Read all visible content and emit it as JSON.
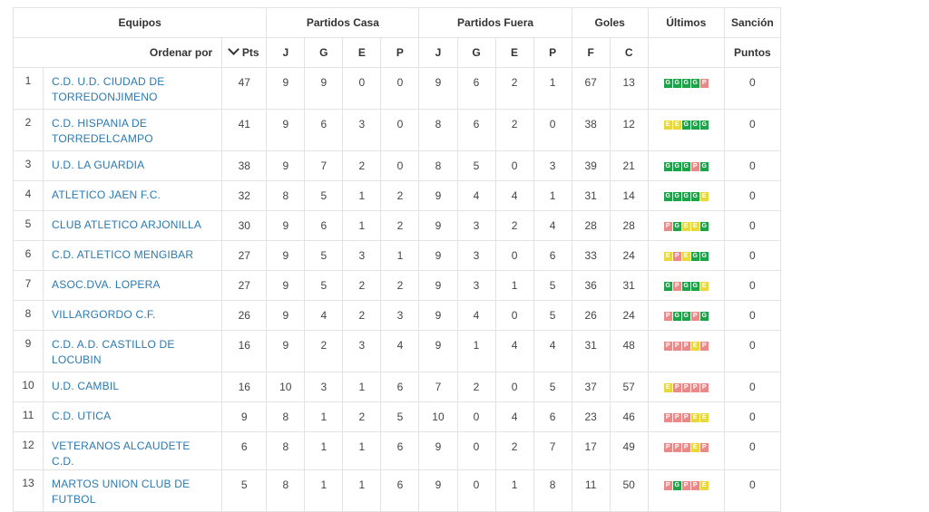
{
  "header": {
    "equipos": "Equipos",
    "casa": "Partidos Casa",
    "fuera": "Partidos Fuera",
    "goles": "Goles",
    "ultimos": "Últimos",
    "sancion": "Sanción",
    "ordenar": "Ordenar por",
    "pts": "Pts",
    "j1": "J",
    "g1": "G",
    "e1": "E",
    "p1": "P",
    "j2": "J",
    "g2": "G",
    "e2": "E",
    "p2": "P",
    "f": "F",
    "c": "C",
    "puntos": "Puntos"
  },
  "form_colors": {
    "G": "#1fa34a",
    "E": "#e8d83c",
    "P": "#e88a8a"
  },
  "rows": [
    {
      "pos": "1",
      "team": "C.D. U.D. CIUDAD DE TORREDONJIMENO",
      "pts": "47",
      "hj": "9",
      "hg": "9",
      "he": "0",
      "hp": "0",
      "aj": "9",
      "ag": "6",
      "ae": "2",
      "ap": "1",
      "f": "67",
      "c": "13",
      "form": [
        "G",
        "G",
        "G",
        "G",
        "P"
      ],
      "sancion": "0"
    },
    {
      "pos": "2",
      "team": "C.D. HISPANIA DE TORREDELCAMPO",
      "pts": "41",
      "hj": "9",
      "hg": "6",
      "he": "3",
      "hp": "0",
      "aj": "8",
      "ag": "6",
      "ae": "2",
      "ap": "0",
      "f": "38",
      "c": "12",
      "form": [
        "E",
        "E",
        "G",
        "G",
        "G"
      ],
      "sancion": "0"
    },
    {
      "pos": "3",
      "team": "U.D. LA GUARDIA",
      "pts": "38",
      "hj": "9",
      "hg": "7",
      "he": "2",
      "hp": "0",
      "aj": "8",
      "ag": "5",
      "ae": "0",
      "ap": "3",
      "f": "39",
      "c": "21",
      "form": [
        "G",
        "G",
        "G",
        "P",
        "G"
      ],
      "sancion": "0"
    },
    {
      "pos": "4",
      "team": "ATLETICO JAEN F.C.",
      "pts": "32",
      "hj": "8",
      "hg": "5",
      "he": "1",
      "hp": "2",
      "aj": "9",
      "ag": "4",
      "ae": "4",
      "ap": "1",
      "f": "31",
      "c": "14",
      "form": [
        "G",
        "G",
        "G",
        "G",
        "E"
      ],
      "sancion": "0"
    },
    {
      "pos": "5",
      "team": "CLUB ATLETICO ARJONILLA",
      "pts": "30",
      "hj": "9",
      "hg": "6",
      "he": "1",
      "hp": "2",
      "aj": "9",
      "ag": "3",
      "ae": "2",
      "ap": "4",
      "f": "28",
      "c": "28",
      "form": [
        "P",
        "G",
        "E",
        "E",
        "G"
      ],
      "sancion": "0"
    },
    {
      "pos": "6",
      "team": "C.D. ATLETICO MENGIBAR",
      "pts": "27",
      "hj": "9",
      "hg": "5",
      "he": "3",
      "hp": "1",
      "aj": "9",
      "ag": "3",
      "ae": "0",
      "ap": "6",
      "f": "33",
      "c": "24",
      "form": [
        "E",
        "P",
        "E",
        "G",
        "G"
      ],
      "sancion": "0"
    },
    {
      "pos": "7",
      "team": "ASOC.DVA. LOPERA",
      "pts": "27",
      "hj": "9",
      "hg": "5",
      "he": "2",
      "hp": "2",
      "aj": "9",
      "ag": "3",
      "ae": "1",
      "ap": "5",
      "f": "36",
      "c": "31",
      "form": [
        "G",
        "P",
        "G",
        "G",
        "E"
      ],
      "sancion": "0"
    },
    {
      "pos": "8",
      "team": "VILLARGORDO C.F.",
      "pts": "26",
      "hj": "9",
      "hg": "4",
      "he": "2",
      "hp": "3",
      "aj": "9",
      "ag": "4",
      "ae": "0",
      "ap": "5",
      "f": "26",
      "c": "24",
      "form": [
        "P",
        "G",
        "G",
        "P",
        "G"
      ],
      "sancion": "0"
    },
    {
      "pos": "9",
      "team": "C.D. A.D. CASTILLO DE LOCUBIN",
      "pts": "16",
      "hj": "9",
      "hg": "2",
      "he": "3",
      "hp": "4",
      "aj": "9",
      "ag": "1",
      "ae": "4",
      "ap": "4",
      "f": "31",
      "c": "48",
      "form": [
        "P",
        "P",
        "P",
        "E",
        "P"
      ],
      "sancion": "0"
    },
    {
      "pos": "10",
      "team": "U.D. CAMBIL",
      "pts": "16",
      "hj": "10",
      "hg": "3",
      "he": "1",
      "hp": "6",
      "aj": "7",
      "ag": "2",
      "ae": "0",
      "ap": "5",
      "f": "37",
      "c": "57",
      "form": [
        "E",
        "P",
        "P",
        "P",
        "P"
      ],
      "sancion": "0"
    },
    {
      "pos": "11",
      "team": "C.D. UTICA",
      "pts": "9",
      "hj": "8",
      "hg": "1",
      "he": "2",
      "hp": "5",
      "aj": "10",
      "ag": "0",
      "ae": "4",
      "ap": "6",
      "f": "23",
      "c": "46",
      "form": [
        "P",
        "P",
        "P",
        "E",
        "E"
      ],
      "sancion": "0"
    },
    {
      "pos": "12",
      "team": "VETERANOS ALCAUDETE C.D.",
      "pts": "6",
      "hj": "8",
      "hg": "1",
      "he": "1",
      "hp": "6",
      "aj": "9",
      "ag": "0",
      "ae": "2",
      "ap": "7",
      "f": "17",
      "c": "49",
      "form": [
        "P",
        "P",
        "P",
        "E",
        "P"
      ],
      "sancion": "0"
    },
    {
      "pos": "13",
      "team": "MARTOS UNION CLUB DE FUTBOL",
      "pts": "5",
      "hj": "8",
      "hg": "1",
      "he": "1",
      "hp": "6",
      "aj": "9",
      "ag": "0",
      "ae": "1",
      "ap": "8",
      "f": "11",
      "c": "50",
      "form": [
        "P",
        "G",
        "P",
        "P",
        "E"
      ],
      "sancion": "0"
    }
  ]
}
